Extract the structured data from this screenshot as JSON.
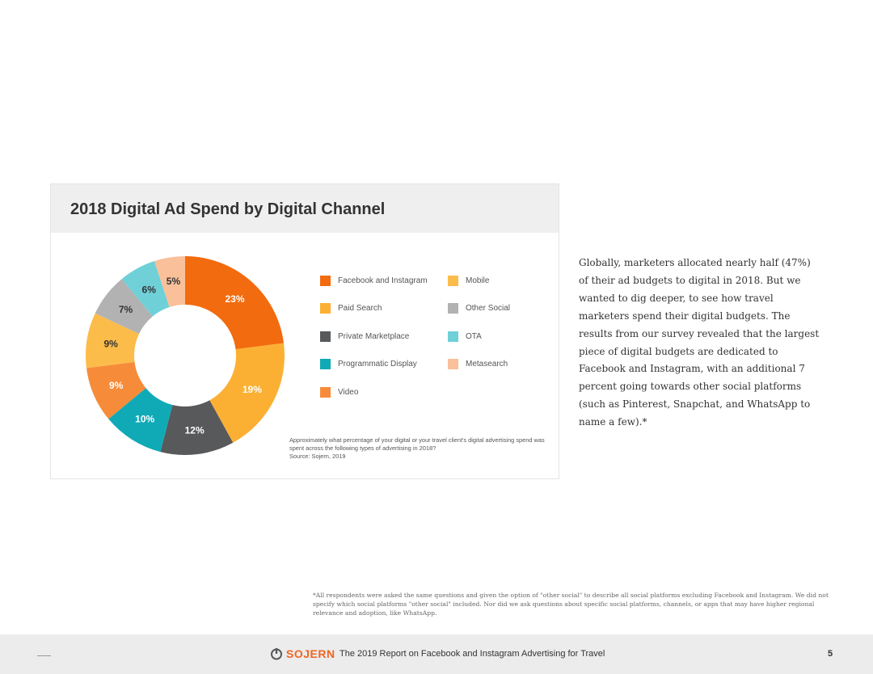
{
  "chart_data": {
    "type": "pie",
    "title": "2018 Digital Ad Spend by Digital Channel",
    "donut": true,
    "slices": [
      {
        "label": "Facebook and Instagram",
        "value": 23,
        "display": "23%",
        "color": "#f26b0f"
      },
      {
        "label": "Paid Search",
        "value": 19,
        "display": "19%",
        "color": "#fbb034"
      },
      {
        "label": "Private Marketplace",
        "value": 12,
        "display": "12%",
        "color": "#58595b"
      },
      {
        "label": "Programmatic Display",
        "value": 10,
        "display": "10%",
        "color": "#10aab7"
      },
      {
        "label": "Video",
        "value": 9,
        "display": "9%",
        "color": "#f68c3a"
      },
      {
        "label": "Mobile",
        "value": 9,
        "display": "9%",
        "color": "#fcbc4a"
      },
      {
        "label": "Other Social",
        "value": 7,
        "display": "7%",
        "color": "#b2b2b2"
      },
      {
        "label": "OTA",
        "value": 6,
        "display": "6%",
        "color": "#6fd0d8"
      },
      {
        "label": "Metasearch",
        "value": 5,
        "display": "5%",
        "color": "#f9c09a"
      }
    ],
    "legend": [
      {
        "label": "Facebook and Instagram",
        "color": "#f26b0f"
      },
      {
        "label": "Paid Search",
        "color": "#fbb034"
      },
      {
        "label": "Private Marketplace",
        "color": "#58595b"
      },
      {
        "label": "Programmatic Display",
        "color": "#10aab7"
      },
      {
        "label": "Video",
        "color": "#f68c3a"
      },
      {
        "label": "Mobile",
        "color": "#fcbc4a"
      },
      {
        "label": "Other Social",
        "color": "#b2b2b2"
      },
      {
        "label": "OTA",
        "color": "#6fd0d8"
      },
      {
        "label": "Metasearch",
        "color": "#f9c09a"
      }
    ],
    "legend_placement": "right"
  },
  "survey_note": {
    "question": "Approximately what percentage of your digital or your travel client's digital advertising spend was spent across the following types of advertising in 2018?",
    "source": "Source: Sojern, 2019"
  },
  "body_text": "Globally, marketers allocated nearly half (47%) of their ad budgets to digital in 2018. But we wanted to dig deeper, to see how travel marketers spend their digital budgets. The results from our survey revealed that the largest piece of digital budgets are dedicated to Facebook and Instagram, with an additional 7 percent going towards other social platforms (such as Pinterest, Snapchat, and WhatsApp to name a few).*",
  "footnote": "*All respondents were asked the same questions and given the option of \"other social\" to describe all social platforms excluding Facebook and Instagram. We did not specify which social platforms \"other social\" included. Nor did we ask questions about specific social platforms, channels, or apps that may have higher regional relevance and adoption, like WhatsApp.",
  "footer": {
    "logo_text": "SOJERN",
    "title": "The 2019 Report on Facebook and Instagram Advertising for Travel",
    "page_number": "5",
    "brand_color": "#f26522"
  }
}
